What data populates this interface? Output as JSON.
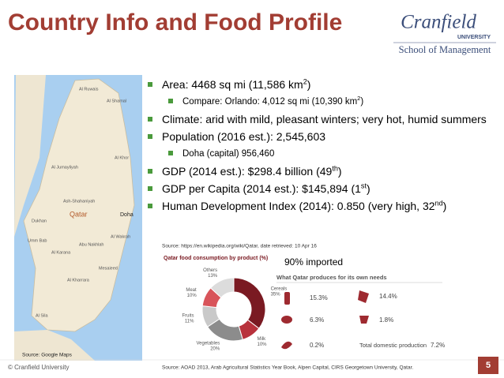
{
  "header": {
    "title": "Country Info and Food Profile",
    "logo": {
      "name": "Cranfield",
      "sub": "UNIVERSITY",
      "school": "School of Management"
    }
  },
  "map": {
    "labels": [
      "Al Ruwais",
      "Al Shamal",
      "Al Khor",
      "Al Jumayliyah",
      "Ash-Shahaniyah",
      "Qatar",
      "Doha",
      "Al Wakrah",
      "Dukhan",
      "Umm Bab",
      "Al Karana",
      "Abu Nakhlah",
      "Mesaieed",
      "Al Kharrara",
      "Al Sila"
    ],
    "source": "Source: Google Maps"
  },
  "bullets": [
    {
      "level": 1,
      "parts": [
        "Area: 4468 sq mi (11,586 km",
        "2",
        ")"
      ]
    },
    {
      "level": 2,
      "parts": [
        "Compare: Orlando: 4,012 sq mi (10,390 km",
        "2",
        ")"
      ]
    },
    {
      "level": 1,
      "parts": [
        "Climate: arid with mild, pleasant winters; very hot, humid summers"
      ]
    },
    {
      "level": 1,
      "parts": [
        "Population (2016 est.): 2,545,603"
      ]
    },
    {
      "level": 2,
      "parts": [
        "Doha (capital) 956,460"
      ]
    },
    {
      "level": 1,
      "parts": [
        "GDP (2014 est.): $298.4 billion (49",
        "th",
        ")"
      ]
    },
    {
      "level": 1,
      "parts": [
        "GDP per Capita (2014 est.): $145,894 (1",
        "st",
        ")"
      ]
    },
    {
      "level": 1,
      "parts": [
        "Human Development Index (2014): 0.850 (very high, 32",
        "nd",
        ")"
      ]
    }
  ],
  "source_top": "Source: https://en.wikipedia.org/wiki/Qatar, date retrieved: 10 Apr 16",
  "chart_data": {
    "type": "donut",
    "title": "Qatar food consumption by product (%)",
    "categories": [
      "Cereals",
      "Milk",
      "Vegetables",
      "Fruits",
      "Meat",
      "Others"
    ],
    "values": [
      35,
      10,
      20,
      11,
      10,
      13
    ],
    "value_labels": [
      "35%",
      "10%",
      "20%",
      "11%",
      "10%",
      "13%"
    ],
    "colors": [
      "#7a1a22",
      "#b8323c",
      "#8c8c8c",
      "#c9c9c9",
      "#d8545a",
      "#dcdcdc"
    ]
  },
  "imported": "90% imported",
  "produces": {
    "title": "What Qatar produces for its own needs",
    "items": [
      "15.3%",
      "14.4%",
      "6.3%",
      "1.8%",
      "0.2%"
    ],
    "total_label": "Total domestic production",
    "total": "7.2%"
  },
  "footer": {
    "copyright": "© Cranfield University",
    "source": "Source: AOAD 2013, Arab Agricultural Statistics Year Book, Alpen Capital, CIRS Georgetown University, Qatar.",
    "page": "5"
  }
}
